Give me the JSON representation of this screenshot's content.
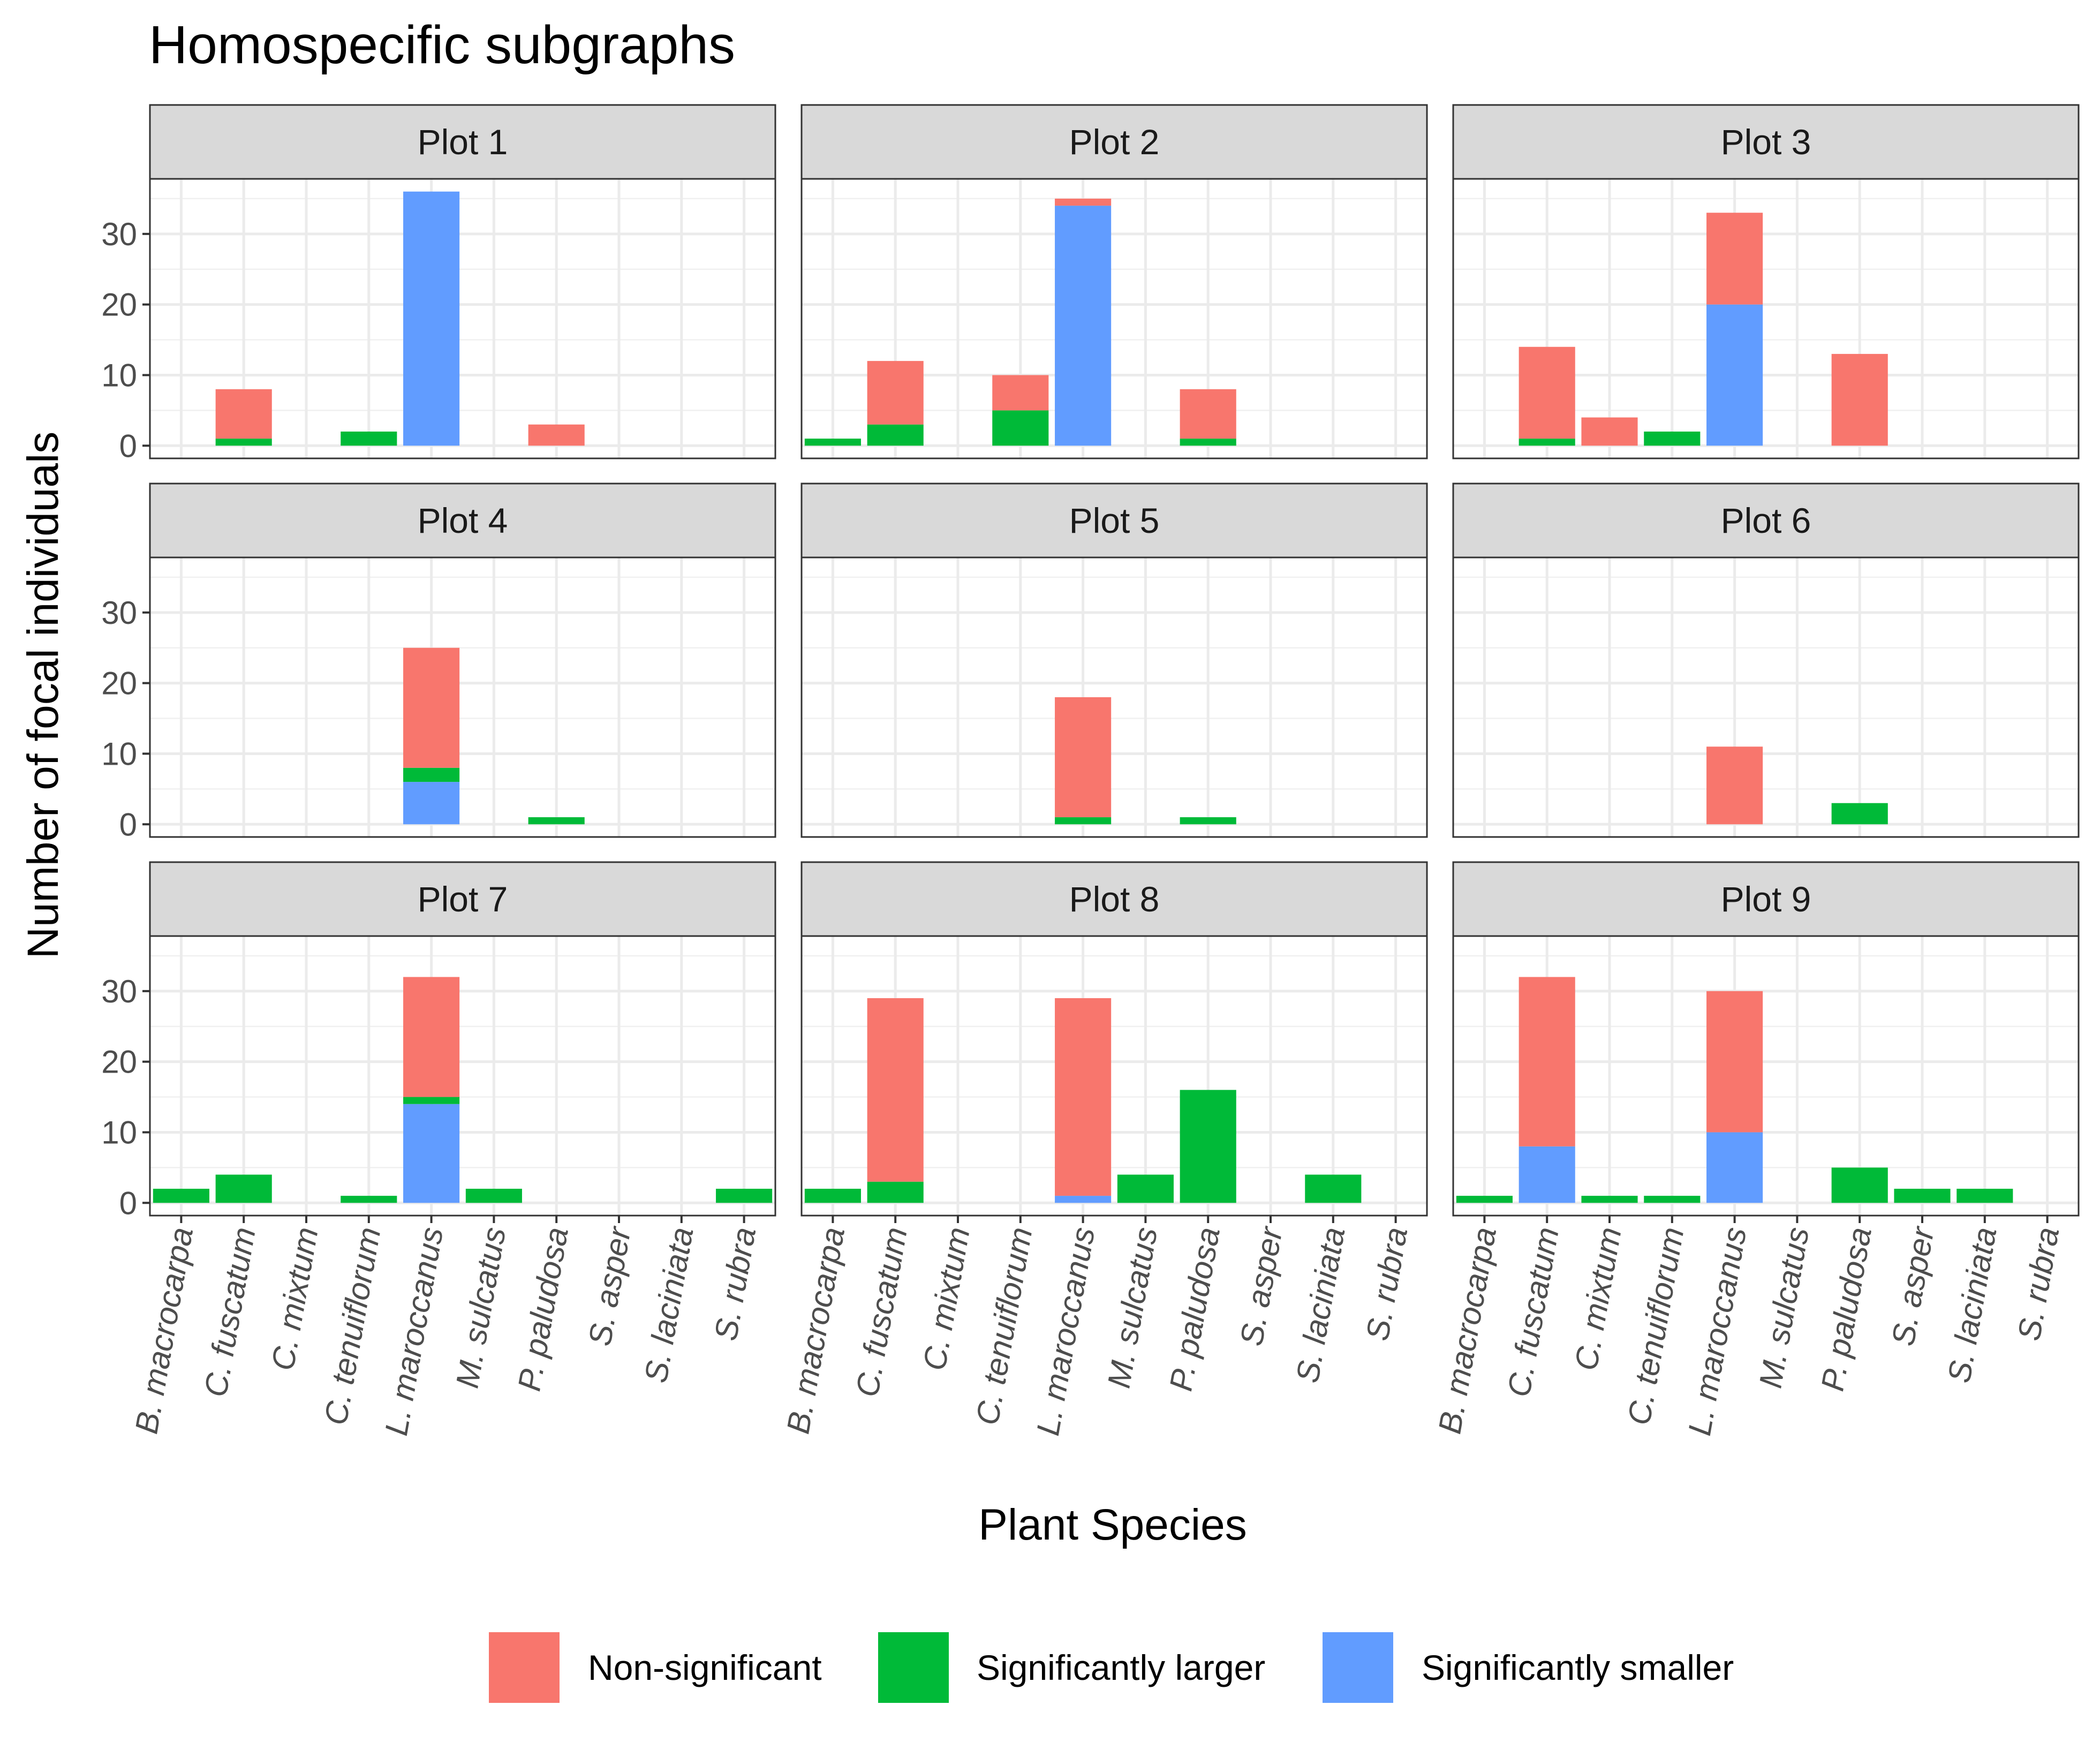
{
  "chart_data": {
    "type": "bar",
    "stacked": true,
    "title": "Homospecific subgraphs",
    "xlabel": "Plant Species",
    "ylabel": "Number of focal individuals",
    "ylim": [
      -1.8,
      37.8
    ],
    "yticks": [
      0,
      10,
      20,
      30
    ],
    "grid": true,
    "legend_position": "bottom",
    "categories": [
      "B. macrocarpa",
      "C. fuscatum",
      "C. mixtum",
      "C. tenuiflorum",
      "L. maroccanus",
      "M. sulcatus",
      "P. paludosa",
      "S. asper",
      "S. laciniata",
      "S. rubra"
    ],
    "series_meta": [
      {
        "name": "Non-significant",
        "color": "#F8766D"
      },
      {
        "name": "Significantly larger",
        "color": "#00BA38"
      },
      {
        "name": "Significantly smaller",
        "color": "#619CFF"
      }
    ],
    "panels": [
      {
        "label": "Plot 1",
        "series": [
          {
            "name": "Significantly smaller",
            "values": [
              0,
              0,
              0,
              0,
              36,
              0,
              0,
              0,
              0,
              0
            ]
          },
          {
            "name": "Significantly larger",
            "values": [
              0,
              1,
              0,
              2,
              0,
              0,
              0,
              0,
              0,
              0
            ]
          },
          {
            "name": "Non-significant",
            "values": [
              0,
              7,
              0,
              0,
              0,
              0,
              3,
              0,
              0,
              0
            ]
          }
        ]
      },
      {
        "label": "Plot 2",
        "series": [
          {
            "name": "Significantly smaller",
            "values": [
              0,
              0,
              0,
              0,
              34,
              0,
              0,
              0,
              0,
              0
            ]
          },
          {
            "name": "Significantly larger",
            "values": [
              1,
              3,
              0,
              5,
              0,
              0,
              1,
              0,
              0,
              0
            ]
          },
          {
            "name": "Non-significant",
            "values": [
              0,
              9,
              0,
              5,
              1,
              0,
              7,
              0,
              0,
              0
            ]
          }
        ]
      },
      {
        "label": "Plot 3",
        "series": [
          {
            "name": "Significantly smaller",
            "values": [
              0,
              0,
              0,
              0,
              20,
              0,
              0,
              0,
              0,
              0
            ]
          },
          {
            "name": "Significantly larger",
            "values": [
              0,
              1,
              0,
              2,
              0,
              0,
              0,
              0,
              0,
              0
            ]
          },
          {
            "name": "Non-significant",
            "values": [
              0,
              13,
              4,
              0,
              13,
              0,
              13,
              0,
              0,
              0
            ]
          }
        ]
      },
      {
        "label": "Plot 4",
        "series": [
          {
            "name": "Significantly smaller",
            "values": [
              0,
              0,
              0,
              0,
              6,
              0,
              0,
              0,
              0,
              0
            ]
          },
          {
            "name": "Significantly larger",
            "values": [
              0,
              0,
              0,
              0,
              2,
              0,
              1,
              0,
              0,
              0
            ]
          },
          {
            "name": "Non-significant",
            "values": [
              0,
              0,
              0,
              0,
              17,
              0,
              0,
              0,
              0,
              0
            ]
          }
        ]
      },
      {
        "label": "Plot 5",
        "series": [
          {
            "name": "Significantly smaller",
            "values": [
              0,
              0,
              0,
              0,
              0,
              0,
              0,
              0,
              0,
              0
            ]
          },
          {
            "name": "Significantly larger",
            "values": [
              0,
              0,
              0,
              0,
              1,
              0,
              1,
              0,
              0,
              0
            ]
          },
          {
            "name": "Non-significant",
            "values": [
              0,
              0,
              0,
              0,
              17,
              0,
              0,
              0,
              0,
              0
            ]
          }
        ]
      },
      {
        "label": "Plot 6",
        "series": [
          {
            "name": "Significantly smaller",
            "values": [
              0,
              0,
              0,
              0,
              0,
              0,
              0,
              0,
              0,
              0
            ]
          },
          {
            "name": "Significantly larger",
            "values": [
              0,
              0,
              0,
              0,
              0,
              0,
              3,
              0,
              0,
              0
            ]
          },
          {
            "name": "Non-significant",
            "values": [
              0,
              0,
              0,
              0,
              11,
              0,
              0,
              0,
              0,
              0
            ]
          }
        ]
      },
      {
        "label": "Plot 7",
        "series": [
          {
            "name": "Significantly smaller",
            "values": [
              0,
              0,
              0,
              0,
              14,
              0,
              0,
              0,
              0,
              0
            ]
          },
          {
            "name": "Significantly larger",
            "values": [
              2,
              4,
              0,
              1,
              1,
              2,
              0,
              0,
              0,
              2
            ]
          },
          {
            "name": "Non-significant",
            "values": [
              0,
              0,
              0,
              0,
              17,
              0,
              0,
              0,
              0,
              0
            ]
          }
        ]
      },
      {
        "label": "Plot 8",
        "series": [
          {
            "name": "Significantly smaller",
            "values": [
              0,
              0,
              0,
              0,
              1,
              0,
              0,
              0,
              0,
              0
            ]
          },
          {
            "name": "Significantly larger",
            "values": [
              2,
              3,
              0,
              0,
              0,
              4,
              16,
              0,
              4,
              0
            ]
          },
          {
            "name": "Non-significant",
            "values": [
              0,
              26,
              0,
              0,
              28,
              0,
              0,
              0,
              0,
              0
            ]
          }
        ]
      },
      {
        "label": "Plot 9",
        "series": [
          {
            "name": "Significantly smaller",
            "values": [
              0,
              8,
              0,
              0,
              10,
              0,
              0,
              0,
              0,
              0
            ]
          },
          {
            "name": "Significantly larger",
            "values": [
              1,
              0,
              1,
              1,
              0,
              0,
              5,
              2,
              2,
              0
            ]
          },
          {
            "name": "Non-significant",
            "values": [
              0,
              24,
              0,
              0,
              20,
              0,
              0,
              0,
              0,
              0
            ]
          }
        ]
      }
    ]
  }
}
